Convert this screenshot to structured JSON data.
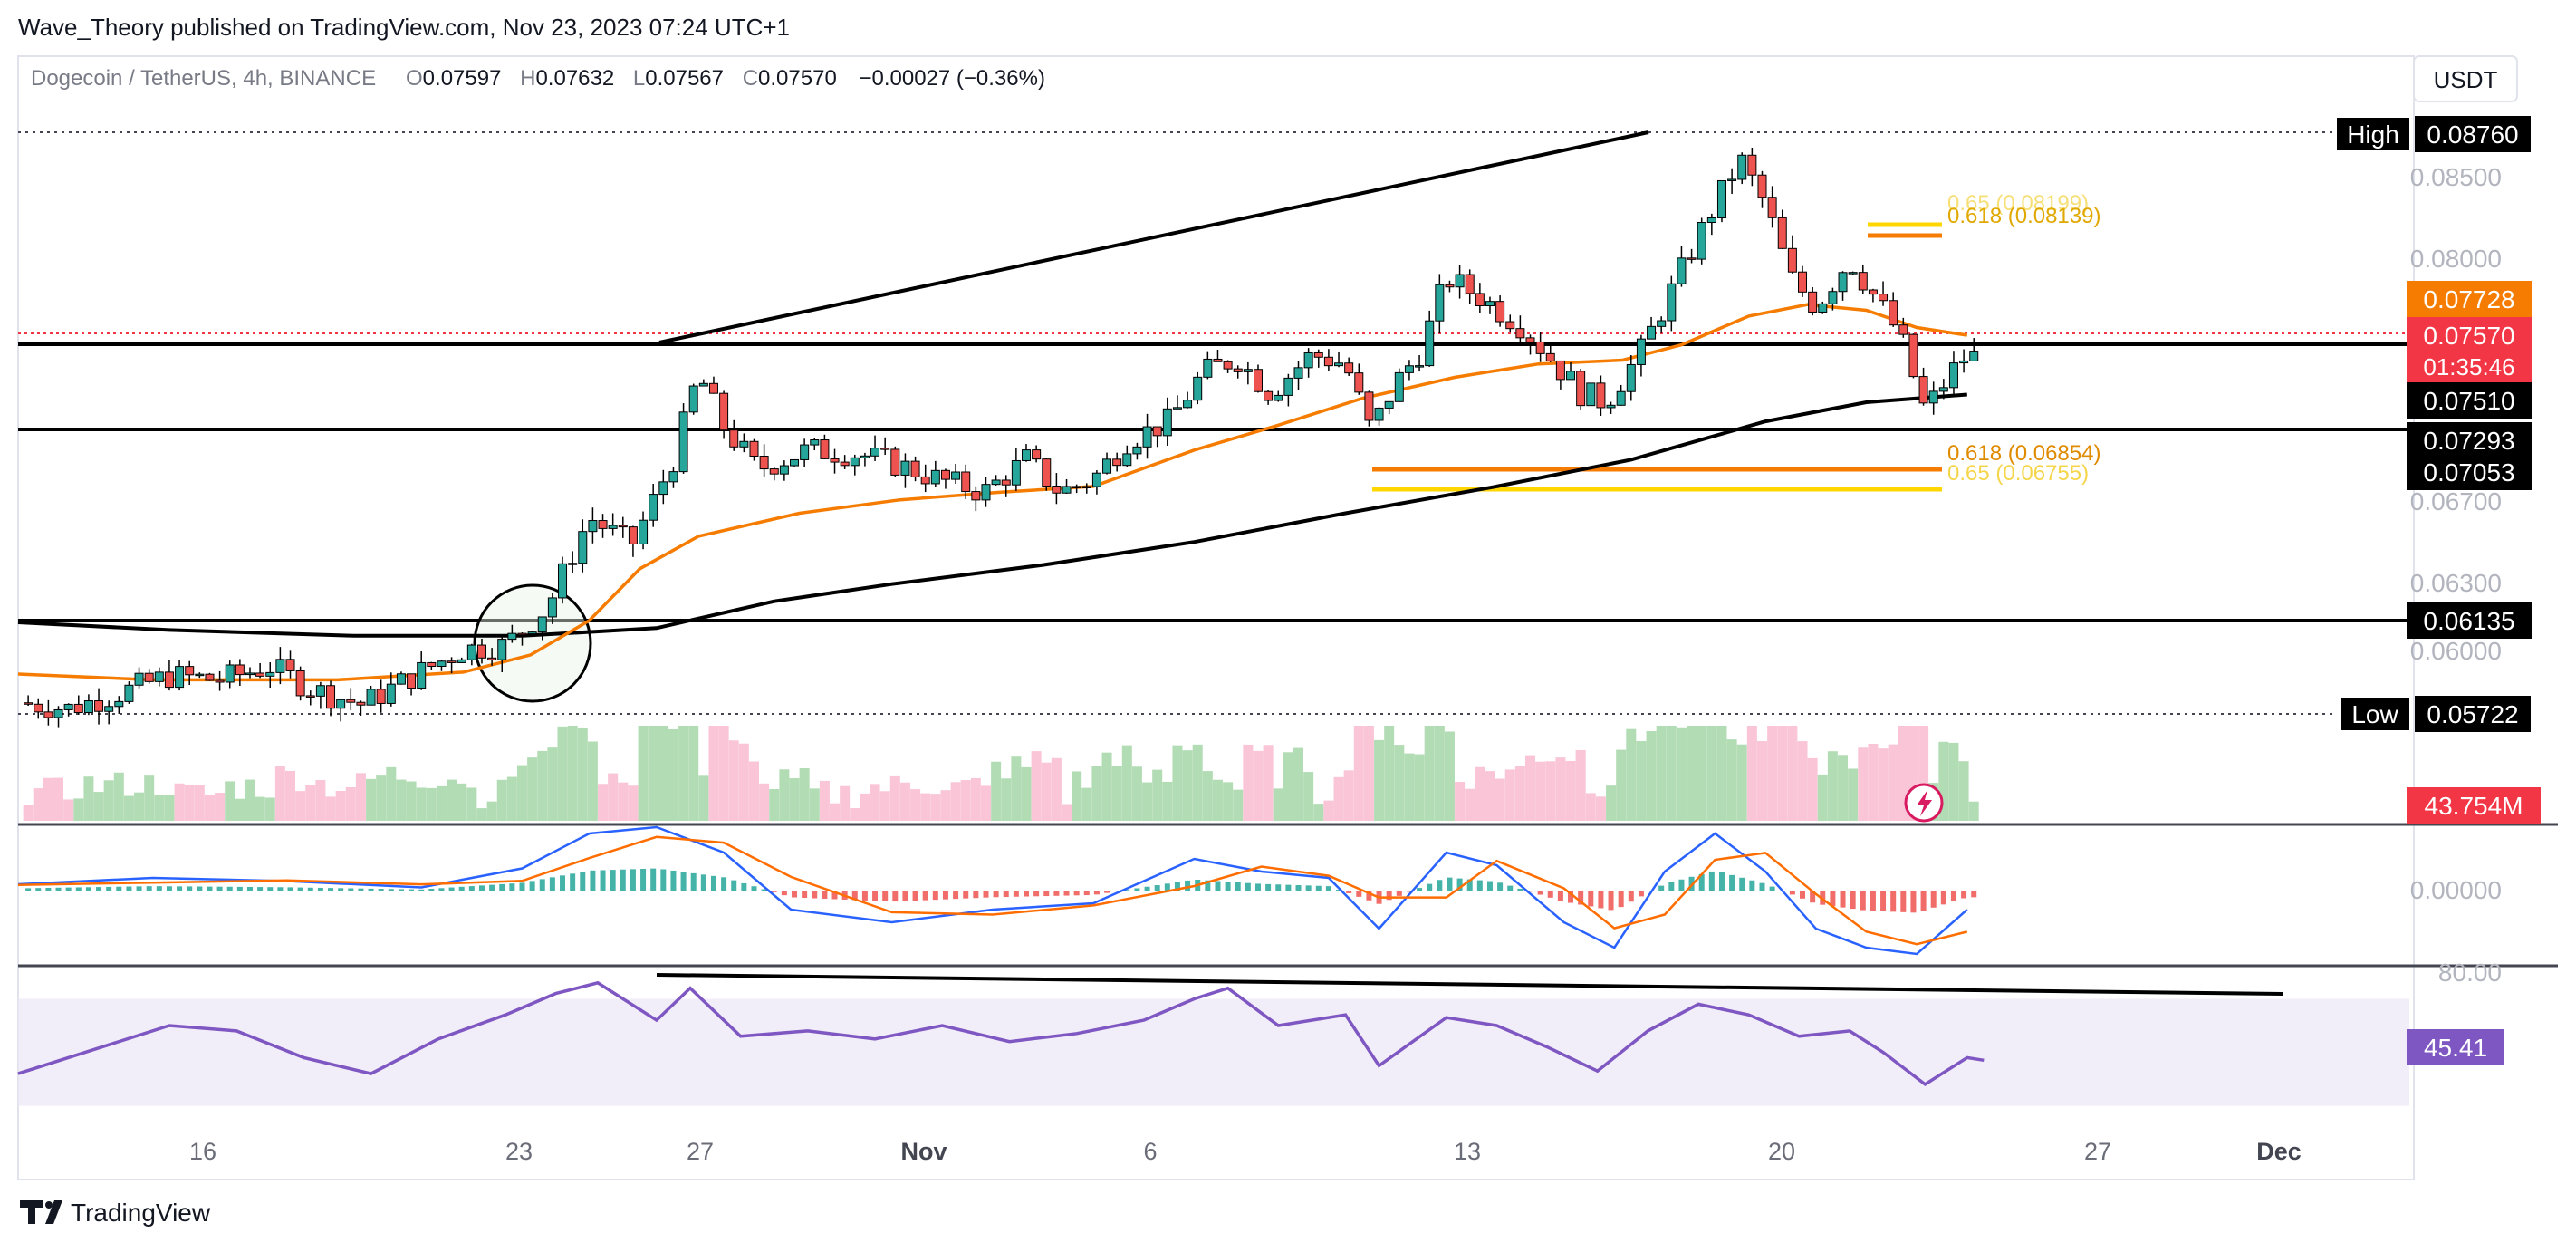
{
  "header": {
    "published": "Wave_Theory published on TradingView.com, Nov 23, 2023 07:24 UTC+1",
    "symbol": "Dogecoin / TetherUS, 4h, BINANCE",
    "ohlc": {
      "o_label": "O",
      "o": "0.07597",
      "h_label": "H",
      "h": "0.07632",
      "l_label": "L",
      "l": "0.07567",
      "c_label": "C",
      "c": "0.07570",
      "change": "−0.00027 (−0.36%)"
    },
    "currency_button": "USDT"
  },
  "footer": {
    "brand": "TradingView"
  },
  "colors": {
    "ema50": "#f57c00",
    "ema200": "#000000",
    "up": "#26a69a",
    "down": "#ef5350",
    "macd_line": "#2962ff",
    "signal_line": "#ff6d00",
    "rsi": "#7e57c2",
    "fib_orange": "#f57c00",
    "fib_yellow": "#ffd600",
    "last_price": "#f23645"
  },
  "chart_data": {
    "type": "candlestick",
    "timeframe": "4h",
    "x_labels": [
      "16",
      "23",
      "27",
      "Nov",
      "6",
      "13",
      "20",
      "27",
      "Dec"
    ],
    "price_axis": {
      "ticks": [
        "0.08500",
        "0.08000",
        "0.06700",
        "0.06300",
        "0.06000"
      ],
      "ylim": [
        0.0562,
        0.0885
      ]
    },
    "tags": {
      "high_label": "High",
      "high": "0.08760",
      "low_label": "Low",
      "low": "0.05722",
      "ema50": "0.07728",
      "last_price": "0.07570",
      "countdown": "01:35:46",
      "ema200": "0.07510",
      "level_1": "0.07293",
      "level_2": "0.07053",
      "level_3": "0.06135",
      "volume": "43.754M",
      "rsi": "45.41"
    },
    "horizontal_levels": [
      0.0757,
      0.07293,
      0.06135
    ],
    "fib_levels": [
      {
        "label": "0.618 (0.08139)",
        "value": 0.08139,
        "color": "orange"
      },
      {
        "label": "0.65 (0.08199)",
        "value": 0.08199,
        "color": "yellow"
      },
      {
        "label": "0.618 (0.06854)",
        "value": 0.06854,
        "color": "orange"
      },
      {
        "label": "0.65 (0.06755)",
        "value": 0.06755,
        "color": "yellow"
      }
    ],
    "ema50_path": [
      [
        0,
        0.0593
      ],
      [
        80,
        0.059
      ],
      [
        190,
        0.059
      ],
      [
        265,
        0.0594
      ],
      [
        305,
        0.0603
      ],
      [
        340,
        0.0621
      ],
      [
        370,
        0.0648
      ],
      [
        405,
        0.0665
      ],
      [
        465,
        0.0677
      ],
      [
        525,
        0.0684
      ],
      [
        585,
        0.0688
      ],
      [
        640,
        0.0691
      ],
      [
        700,
        0.071
      ],
      [
        750,
        0.0723
      ],
      [
        800,
        0.0737
      ],
      [
        855,
        0.0748
      ],
      [
        905,
        0.0755
      ],
      [
        955,
        0.0757
      ],
      [
        990,
        0.0765
      ],
      [
        1030,
        0.078
      ],
      [
        1065,
        0.0786
      ],
      [
        1100,
        0.0783
      ],
      [
        1130,
        0.0774
      ],
      [
        1160,
        0.077
      ]
    ],
    "ema200_path": [
      [
        0,
        0.062
      ],
      [
        90,
        0.0616
      ],
      [
        200,
        0.0613
      ],
      [
        300,
        0.0613
      ],
      [
        380,
        0.0617
      ],
      [
        450,
        0.0631
      ],
      [
        520,
        0.064
      ],
      [
        610,
        0.065
      ],
      [
        700,
        0.0662
      ],
      [
        790,
        0.0677
      ],
      [
        880,
        0.0691
      ],
      [
        960,
        0.0705
      ],
      [
        1040,
        0.0725
      ],
      [
        1100,
        0.0735
      ],
      [
        1160,
        0.0739
      ]
    ],
    "price_path": [
      [
        0,
        0.0578
      ],
      [
        30,
        0.0575
      ],
      [
        60,
        0.0583
      ],
      [
        90,
        0.0592
      ],
      [
        120,
        0.059
      ],
      [
        150,
        0.0597
      ],
      [
        175,
        0.0585
      ],
      [
        205,
        0.0577
      ],
      [
        235,
        0.0592
      ],
      [
        265,
        0.0606
      ],
      [
        290,
        0.0608
      ],
      [
        315,
        0.0628
      ],
      [
        340,
        0.0675
      ],
      [
        365,
        0.066
      ],
      [
        390,
        0.0705
      ],
      [
        405,
        0.075
      ],
      [
        420,
        0.0722
      ],
      [
        440,
        0.07
      ],
      [
        470,
        0.071
      ],
      [
        500,
        0.0708
      ],
      [
        525,
        0.0702
      ],
      [
        550,
        0.0694
      ],
      [
        575,
        0.0688
      ],
      [
        600,
        0.0705
      ],
      [
        620,
        0.0688
      ],
      [
        640,
        0.0695
      ],
      [
        660,
        0.0715
      ],
      [
        685,
        0.0725
      ],
      [
        705,
        0.075
      ],
      [
        725,
        0.0758
      ],
      [
        745,
        0.074
      ],
      [
        770,
        0.076
      ],
      [
        790,
        0.0755
      ],
      [
        805,
        0.072
      ],
      [
        820,
        0.0745
      ],
      [
        835,
        0.0762
      ],
      [
        850,
        0.08
      ],
      [
        870,
        0.079
      ],
      [
        895,
        0.0775
      ],
      [
        915,
        0.0755
      ],
      [
        930,
        0.074
      ],
      [
        945,
        0.0735
      ],
      [
        965,
        0.076
      ],
      [
        985,
        0.0795
      ],
      [
        1005,
        0.083
      ],
      [
        1025,
        0.0862
      ],
      [
        1040,
        0.0838
      ],
      [
        1055,
        0.08
      ],
      [
        1070,
        0.0785
      ],
      [
        1090,
        0.081
      ],
      [
        1105,
        0.079
      ],
      [
        1120,
        0.077
      ],
      [
        1135,
        0.073
      ],
      [
        1150,
        0.075
      ],
      [
        1160,
        0.076
      ],
      [
        1170,
        0.0757
      ]
    ],
    "macd": {
      "zero_label": "0.00000",
      "histogram": [
        [
          0,
          0.1
        ],
        [
          80,
          0.2
        ],
        [
          160,
          0.15
        ],
        [
          240,
          0.05
        ],
        [
          300,
          0.35
        ],
        [
          340,
          0.9
        ],
        [
          380,
          1.0
        ],
        [
          420,
          0.6
        ],
        [
          460,
          -0.3
        ],
        [
          520,
          -0.5
        ],
        [
          580,
          -0.3
        ],
        [
          640,
          -0.2
        ],
        [
          700,
          0.5
        ],
        [
          740,
          0.3
        ],
        [
          780,
          0.2
        ],
        [
          810,
          -0.6
        ],
        [
          850,
          0.6
        ],
        [
          880,
          0.4
        ],
        [
          920,
          -0.5
        ],
        [
          950,
          -0.9
        ],
        [
          980,
          0.3
        ],
        [
          1010,
          0.9
        ],
        [
          1040,
          0.3
        ],
        [
          1070,
          -0.6
        ],
        [
          1100,
          -0.9
        ],
        [
          1130,
          -1.0
        ],
        [
          1160,
          -0.3
        ]
      ]
    },
    "rsi": {
      "overbought_label": "80.00",
      "band": [
        30,
        70
      ],
      "values": [
        [
          0,
          42
        ],
        [
          50,
          52
        ],
        [
          90,
          60
        ],
        [
          130,
          58
        ],
        [
          170,
          48
        ],
        [
          210,
          42
        ],
        [
          250,
          55
        ],
        [
          290,
          64
        ],
        [
          320,
          72
        ],
        [
          345,
          76
        ],
        [
          380,
          62
        ],
        [
          400,
          74
        ],
        [
          430,
          56
        ],
        [
          470,
          58
        ],
        [
          510,
          55
        ],
        [
          550,
          60
        ],
        [
          590,
          54
        ],
        [
          630,
          57
        ],
        [
          670,
          62
        ],
        [
          700,
          70
        ],
        [
          720,
          74
        ],
        [
          750,
          60
        ],
        [
          790,
          64
        ],
        [
          810,
          45
        ],
        [
          850,
          63
        ],
        [
          880,
          60
        ],
        [
          910,
          52
        ],
        [
          940,
          43
        ],
        [
          970,
          58
        ],
        [
          1000,
          68
        ],
        [
          1030,
          64
        ],
        [
          1060,
          56
        ],
        [
          1090,
          58
        ],
        [
          1110,
          50
        ],
        [
          1135,
          38
        ],
        [
          1160,
          48
        ],
        [
          1170,
          47
        ]
      ]
    }
  }
}
